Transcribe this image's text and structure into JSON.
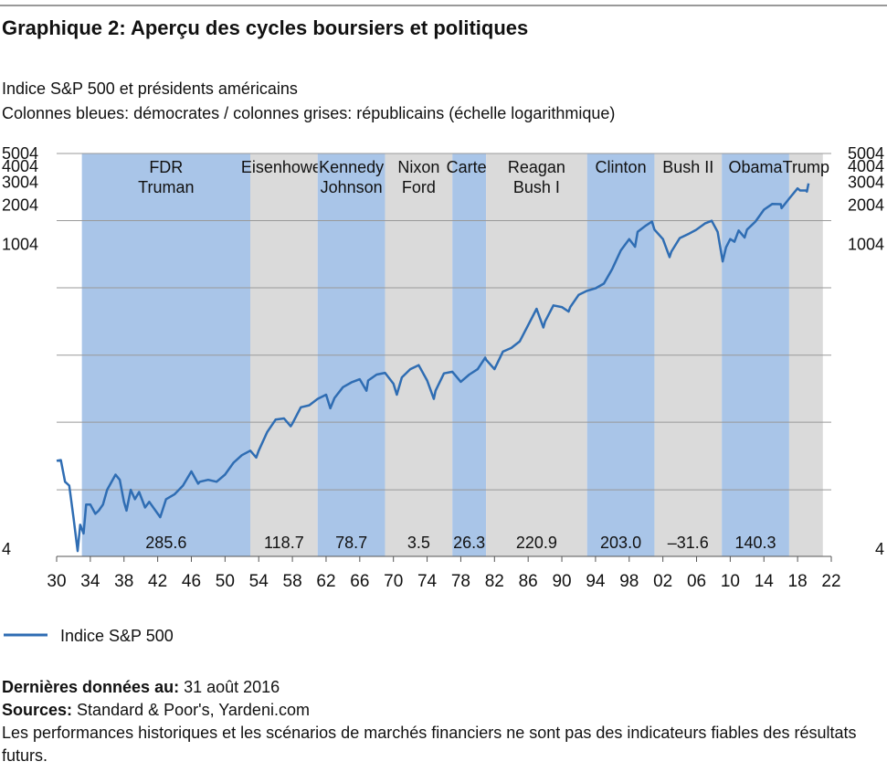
{
  "chart_data": {
    "type": "line",
    "title": "Graphique 2: Aperçu des cycles boursiers et politiques",
    "subtitle": [
      "Indice S&P 500 et présidents américains",
      "Colonnes bleues: démocrates / colonnes grises: républicains (échelle logarithmique)"
    ],
    "yscale": "log",
    "xlim": [
      1930,
      2022
    ],
    "xticks": [
      {
        "value": 1930,
        "label": "30"
      },
      {
        "value": 1934,
        "label": "34"
      },
      {
        "value": 1938,
        "label": "38"
      },
      {
        "value": 1942,
        "label": "42"
      },
      {
        "value": 1946,
        "label": "46"
      },
      {
        "value": 1950,
        "label": "50"
      },
      {
        "value": 1954,
        "label": "54"
      },
      {
        "value": 1958,
        "label": "58"
      },
      {
        "value": 1962,
        "label": "62"
      },
      {
        "value": 1966,
        "label": "66"
      },
      {
        "value": 1970,
        "label": "70"
      },
      {
        "value": 1974,
        "label": "74"
      },
      {
        "value": 1978,
        "label": "78"
      },
      {
        "value": 1982,
        "label": "82"
      },
      {
        "value": 1986,
        "label": "86"
      },
      {
        "value": 1990,
        "label": "90"
      },
      {
        "value": 1994,
        "label": "94"
      },
      {
        "value": 1998,
        "label": "98"
      },
      {
        "value": 2002,
        "label": "02"
      },
      {
        "value": 2006,
        "label": "06"
      },
      {
        "value": 2010,
        "label": "10"
      },
      {
        "value": 2014,
        "label": "14"
      },
      {
        "value": 2018,
        "label": "18"
      },
      {
        "value": 2022,
        "label": "22"
      }
    ],
    "ylim": [
      4,
      5004
    ],
    "yticks": [
      4,
      1004,
      2004,
      3004,
      4004,
      5004
    ],
    "ygrid": [
      4,
      13,
      43,
      141,
      464,
      1525,
      5004
    ],
    "periods": [
      {
        "start": 1933,
        "end": 1953,
        "names": [
          "FDR",
          "Truman"
        ],
        "color": "#a9c5e8",
        "value": 285.6
      },
      {
        "start": 1953,
        "end": 1961,
        "names": [
          "Eisenhower"
        ],
        "color": "#dadada",
        "value": 118.7
      },
      {
        "start": 1961,
        "end": 1969,
        "names": [
          "Kennedy",
          "Johnson"
        ],
        "color": "#a9c5e8",
        "value": 78.7
      },
      {
        "start": 1969,
        "end": 1977,
        "names": [
          "Nixon",
          "Ford"
        ],
        "color": "#dadada",
        "value": 3.5
      },
      {
        "start": 1977,
        "end": 1981,
        "names": [
          "Carter"
        ],
        "color": "#a9c5e8",
        "value": 26.3
      },
      {
        "start": 1981,
        "end": 1993,
        "names": [
          "Reagan",
          "Bush I"
        ],
        "color": "#dadada",
        "value": 220.9
      },
      {
        "start": 1993,
        "end": 2001,
        "names": [
          "Clinton"
        ],
        "color": "#a9c5e8",
        "value": 203,
        "value_label": "203.0"
      },
      {
        "start": 2001,
        "end": 2009,
        "names": [
          "Bush II"
        ],
        "color": "#dadada",
        "value": -31.6,
        "value_label": "–31.6"
      },
      {
        "start": 2009,
        "end": 2017,
        "names": [
          "Obama"
        ],
        "color": "#a9c5e8",
        "value": 140.3
      },
      {
        "start": 2017,
        "end": 2021,
        "names": [
          "Trump"
        ],
        "color": "#dadada"
      }
    ],
    "x": [
      1930,
      1930.5,
      1931,
      1931.5,
      1932,
      1932.5,
      1932.8,
      1933.2,
      1933.5,
      1934,
      1934.6,
      1935,
      1935.5,
      1936,
      1937,
      1937.5,
      1938,
      1938.3,
      1938.8,
      1939.3,
      1939.8,
      1940.5,
      1941,
      1942.3,
      1943,
      1944,
      1945,
      1946,
      1946.8,
      1947,
      1948,
      1949,
      1950,
      1951,
      1952,
      1953,
      1953.7,
      1954,
      1955,
      1956,
      1957,
      1957.8,
      1958,
      1959,
      1960,
      1961,
      1962,
      1962.5,
      1963,
      1964,
      1965,
      1966,
      1966.8,
      1967,
      1968,
      1969,
      1970,
      1970.4,
      1971,
      1972,
      1973,
      1974,
      1974.8,
      1975,
      1976,
      1977,
      1978,
      1979,
      1980,
      1980.9,
      1981,
      1982,
      1983,
      1984,
      1985,
      1986,
      1987,
      1987.8,
      1988,
      1989,
      1990,
      1990.8,
      1991,
      1992,
      1993,
      1994,
      1995,
      1996,
      1997,
      1998,
      1998.7,
      1999,
      2000,
      2000.7,
      2001,
      2002,
      2002.8,
      2003,
      2004,
      2005,
      2006,
      2007,
      2007.8,
      2008.5,
      2009.1,
      2009.5,
      2010,
      2010.5,
      2011,
      2011.7,
      2012,
      2013,
      2014,
      2015,
      2016,
      2016.1,
      2017,
      2018,
      2018.3,
      2019,
      2019.1,
      2019.3
    ],
    "series": [
      {
        "name": "Indice S&P 500",
        "color": "#2f6db3",
        "values": [
          21.7,
          22,
          15,
          14,
          8,
          4.4,
          7,
          6,
          10,
          10,
          8.5,
          9,
          10,
          13,
          17,
          15.5,
          10.5,
          9,
          13,
          11,
          12.5,
          9.5,
          10.5,
          8,
          11,
          12,
          14,
          18,
          14.5,
          15,
          15.5,
          15,
          17,
          21,
          24,
          26,
          23,
          26,
          36,
          45,
          46,
          40,
          42,
          56,
          58,
          65,
          70,
          55,
          66,
          80,
          87,
          92,
          75,
          90,
          100,
          103,
          85,
          70,
          95,
          110,
          118,
          90,
          65,
          75,
          102,
          105,
          88,
          100,
          110,
          135,
          130,
          110,
          150,
          160,
          180,
          240,
          320,
          230,
          255,
          340,
          330,
          305,
          330,
          410,
          440,
          460,
          500,
          650,
          900,
          1100,
          960,
          1250,
          1400,
          1500,
          1300,
          1100,
          800,
          880,
          1120,
          1200,
          1300,
          1450,
          1520,
          1250,
          740,
          950,
          1100,
          1050,
          1280,
          1130,
          1300,
          1500,
          1850,
          2050,
          2040,
          1900,
          2250,
          2700,
          2600,
          2600,
          2550,
          2950
        ]
      }
    ]
  },
  "footer": [
    {
      "label": "Dernières données au:",
      "text": "31 août 2016"
    },
    {
      "label": "Sources:",
      "text": "Standard & Poor's, Yardeni.com"
    },
    {
      "text": "Les performances historiques et les scénarios de marchés financiers ne sont pas des indicateurs fiables des résultats futurs."
    }
  ]
}
